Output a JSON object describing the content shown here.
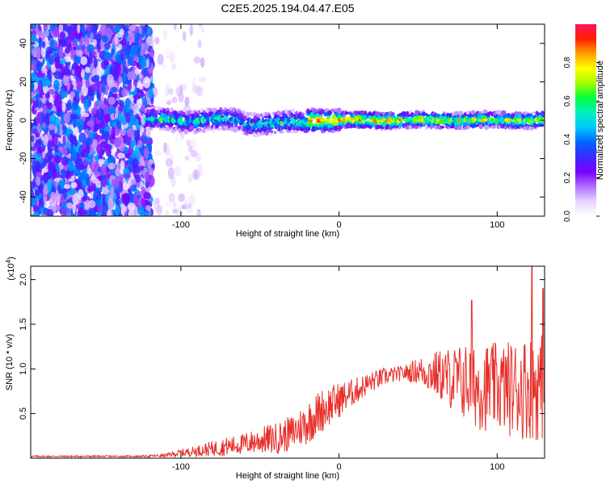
{
  "title": "C2E5.2025.194.04.47.E05",
  "chart_data": [
    {
      "type": "heatmap",
      "title": "C2E5.2025.194.04.47.E05",
      "xlabel": "Height of straight line (km)",
      "ylabel": "Frequency (Hz)",
      "xlim": [
        -195,
        130
      ],
      "ylim": [
        -50,
        50
      ],
      "xticks": [
        -100,
        0,
        100
      ],
      "yticks": [
        -40,
        -20,
        0,
        20,
        40
      ],
      "description_of_content": {
        "noise_region_x": [
          -195,
          -95
        ],
        "signal_band_center_hz": 0,
        "signal_band_halfwidth_hz": 4
      },
      "colorbar": {
        "label": "Normalized spectral amplitude",
        "range": [
          0,
          1
        ],
        "ticks": [
          "0.0",
          "0.2",
          "0.4",
          "0.6",
          "0.8"
        ],
        "ticks_values": [
          0.0,
          0.2,
          0.4,
          0.6,
          0.8
        ],
        "colormap": [
          "#ffffff",
          "#e8d4ff",
          "#b070ff",
          "#7a00ff",
          "#3c28ff",
          "#0064ff",
          "#00c8ff",
          "#00f0c0",
          "#00ff40",
          "#a0ff00",
          "#ffff00",
          "#ffa000",
          "#ff2000",
          "#ff1060"
        ]
      }
    },
    {
      "type": "line",
      "xlabel": "Height of straight line (km)",
      "ylabel": "SNR (10 * v/v)",
      "y_exponent_label": "(x10",
      "y_exponent_value": "4",
      "xlim": [
        -195,
        130
      ],
      "ylim": [
        0,
        2.15
      ],
      "xticks": [
        -100,
        0,
        100
      ],
      "yticks": [
        0.5,
        1.0,
        1.5,
        2.0
      ],
      "ytick_labels": [
        "0.5",
        "1.0",
        "1.5",
        "2.0"
      ],
      "line_color": "#e8302a",
      "envelope": {
        "x": [
          -195,
          -150,
          -125,
          -110,
          -100,
          -90,
          -75,
          -60,
          -50,
          -40,
          -30,
          -20,
          -10,
          0,
          10,
          20,
          30,
          40,
          50,
          60,
          70,
          80,
          90,
          100,
          110,
          120,
          130
        ],
        "mean": [
          0.02,
          0.02,
          0.02,
          0.03,
          0.06,
          0.08,
          0.12,
          0.16,
          0.2,
          0.22,
          0.28,
          0.4,
          0.55,
          0.65,
          0.75,
          0.85,
          0.92,
          0.95,
          0.98,
          0.95,
          0.9,
          0.85,
          0.8,
          0.8,
          0.78,
          0.8,
          0.8
        ],
        "amp": [
          0.01,
          0.01,
          0.01,
          0.02,
          0.04,
          0.06,
          0.1,
          0.12,
          0.15,
          0.18,
          0.2,
          0.25,
          0.25,
          0.2,
          0.15,
          0.12,
          0.1,
          0.08,
          0.15,
          0.25,
          0.35,
          0.45,
          0.5,
          0.5,
          0.55,
          0.6,
          0.6
        ]
      },
      "peaks": [
        {
          "x": 84,
          "y": 1.77
        },
        {
          "x": 122,
          "y": 2.15
        },
        {
          "x": 129,
          "y": 1.9
        }
      ]
    }
  ]
}
